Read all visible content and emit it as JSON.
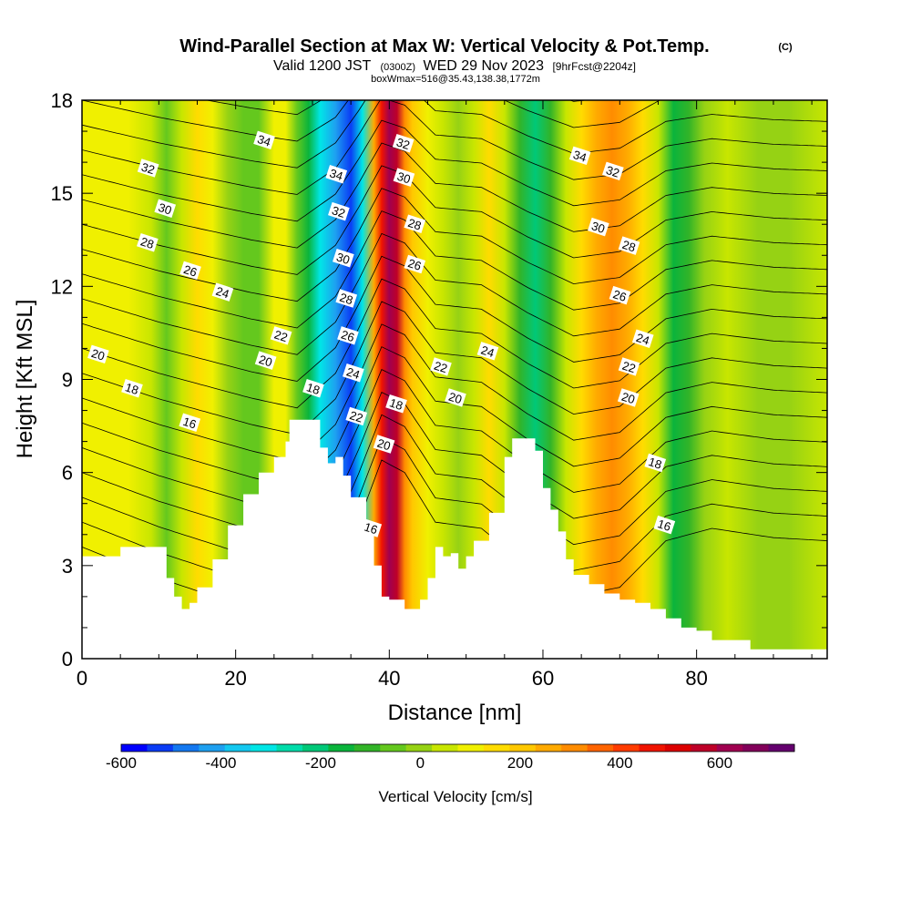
{
  "figure": {
    "title": "Wind-Parallel Section at Max W: Vertical Velocity & Pot.Temp.",
    "title_mark": "(C)",
    "subtitle_main": "Valid 1200 JST",
    "subtitle_z": "(0300Z)",
    "subtitle_date": "WED 29 Nov 2023",
    "subtitle_fcst": "[9hrFcst@2204z]",
    "box_info": "boxWmax=516@35.43,138.38,1772m"
  },
  "chart_data": {
    "type": "heatmap",
    "title": "Wind-Parallel Section at Max W: Vertical Velocity & Pot.Temp.",
    "xlabel": "Distance [nm]",
    "ylabel": "Height [Kft MSL]",
    "xlim": [
      0,
      97
    ],
    "ylim": [
      0,
      18
    ],
    "x_ticks": [
      0,
      20,
      40,
      60,
      80
    ],
    "y_ticks": [
      0,
      3,
      6,
      9,
      12,
      15,
      18
    ],
    "colorbar": {
      "label": "Vertical Velocity [cm/s]",
      "ticks": [
        -600,
        -400,
        -200,
        0,
        200,
        400,
        600
      ],
      "range": [
        -600,
        750
      ],
      "colors": [
        "#0000ff",
        "#0a3cf5",
        "#1478f0",
        "#1ea0f0",
        "#14c8f0",
        "#00e6e6",
        "#00dcaa",
        "#00c878",
        "#0ab43c",
        "#32b428",
        "#64c81e",
        "#96d214",
        "#c8e600",
        "#f0f000",
        "#ffdc00",
        "#ffc800",
        "#ffaa00",
        "#ff8c00",
        "#ff6400",
        "#ff3c00",
        "#f01400",
        "#dc0000",
        "#be0028",
        "#a00050",
        "#82005a",
        "#64006e"
      ]
    },
    "velocity_columns": [
      {
        "x": 0,
        "w": 110
      },
      {
        "x": 3,
        "w": 120
      },
      {
        "x": 6,
        "w": 90
      },
      {
        "x": 9,
        "w": 30
      },
      {
        "x": 11,
        "w": -60
      },
      {
        "x": 13,
        "w": 70
      },
      {
        "x": 15,
        "w": 150
      },
      {
        "x": 17,
        "w": 120
      },
      {
        "x": 19,
        "w": 0
      },
      {
        "x": 21,
        "w": -80
      },
      {
        "x": 23,
        "w": -30
      },
      {
        "x": 25,
        "w": 100
      },
      {
        "x": 26.5,
        "w": 110
      },
      {
        "x": 28,
        "w": -50
      },
      {
        "x": 29.5,
        "w": -170
      },
      {
        "x": 31,
        "w": -310
      },
      {
        "x": 33,
        "w": -420
      },
      {
        "x": 35,
        "w": -520
      },
      {
        "x": 36.5,
        "w": -300
      },
      {
        "x": 38,
        "w": 250
      },
      {
        "x": 39,
        "w": 480
      },
      {
        "x": 40,
        "w": 600
      },
      {
        "x": 41,
        "w": 560
      },
      {
        "x": 42,
        "w": 320
      },
      {
        "x": 43,
        "w": 180
      },
      {
        "x": 45,
        "w": 120
      },
      {
        "x": 47,
        "w": 70
      },
      {
        "x": 49,
        "w": 10
      },
      {
        "x": 51,
        "w": 70
      },
      {
        "x": 53,
        "w": 130
      },
      {
        "x": 55,
        "w": 60
      },
      {
        "x": 57,
        "w": -120
      },
      {
        "x": 59,
        "w": -210
      },
      {
        "x": 61,
        "w": -90
      },
      {
        "x": 63,
        "w": 60
      },
      {
        "x": 65,
        "w": 160
      },
      {
        "x": 67,
        "w": 250
      },
      {
        "x": 69,
        "w": 300
      },
      {
        "x": 71,
        "w": 260
      },
      {
        "x": 73,
        "w": 160
      },
      {
        "x": 75,
        "w": 30
      },
      {
        "x": 77,
        "w": -150
      },
      {
        "x": 79,
        "w": -90
      },
      {
        "x": 81,
        "w": 0
      },
      {
        "x": 84,
        "w": 50
      },
      {
        "x": 88,
        "w": 10
      },
      {
        "x": 92,
        "w": -10
      },
      {
        "x": 97,
        "w": 30
      }
    ],
    "terrain": [
      {
        "x": 0,
        "h": 3.3
      },
      {
        "x": 4,
        "h": 3.3
      },
      {
        "x": 5,
        "h": 3.6
      },
      {
        "x": 10,
        "h": 3.6
      },
      {
        "x": 11,
        "h": 2.6
      },
      {
        "x": 12,
        "h": 2.0
      },
      {
        "x": 13,
        "h": 1.6
      },
      {
        "x": 14,
        "h": 1.8
      },
      {
        "x": 15,
        "h": 2.3
      },
      {
        "x": 17,
        "h": 3.2
      },
      {
        "x": 19,
        "h": 4.3
      },
      {
        "x": 21,
        "h": 5.3
      },
      {
        "x": 23,
        "h": 6.0
      },
      {
        "x": 25,
        "h": 6.5
      },
      {
        "x": 26.5,
        "h": 7.0
      },
      {
        "x": 27,
        "h": 7.7
      },
      {
        "x": 30,
        "h": 7.7
      },
      {
        "x": 31,
        "h": 6.8
      },
      {
        "x": 32,
        "h": 6.3
      },
      {
        "x": 33,
        "h": 6.5
      },
      {
        "x": 34,
        "h": 5.9
      },
      {
        "x": 35,
        "h": 5.2
      },
      {
        "x": 37,
        "h": 4.3
      },
      {
        "x": 38,
        "h": 3.0
      },
      {
        "x": 39,
        "h": 2.0
      },
      {
        "x": 40,
        "h": 1.9
      },
      {
        "x": 42,
        "h": 1.6
      },
      {
        "x": 44,
        "h": 1.9
      },
      {
        "x": 45,
        "h": 2.6
      },
      {
        "x": 46,
        "h": 3.6
      },
      {
        "x": 47,
        "h": 3.3
      },
      {
        "x": 48,
        "h": 3.4
      },
      {
        "x": 49,
        "h": 2.9
      },
      {
        "x": 50,
        "h": 3.3
      },
      {
        "x": 51,
        "h": 3.8
      },
      {
        "x": 53,
        "h": 4.7
      },
      {
        "x": 55,
        "h": 6.5
      },
      {
        "x": 56,
        "h": 7.1
      },
      {
        "x": 58,
        "h": 7.1
      },
      {
        "x": 59,
        "h": 6.7
      },
      {
        "x": 60,
        "h": 5.5
      },
      {
        "x": 61,
        "h": 4.8
      },
      {
        "x": 62,
        "h": 4.1
      },
      {
        "x": 63,
        "h": 3.2
      },
      {
        "x": 64,
        "h": 2.7
      },
      {
        "x": 66,
        "h": 2.4
      },
      {
        "x": 68,
        "h": 2.1
      },
      {
        "x": 70,
        "h": 1.9
      },
      {
        "x": 72,
        "h": 1.8
      },
      {
        "x": 74,
        "h": 1.6
      },
      {
        "x": 76,
        "h": 1.3
      },
      {
        "x": 78,
        "h": 1.0
      },
      {
        "x": 80,
        "h": 0.9
      },
      {
        "x": 82,
        "h": 0.6
      },
      {
        "x": 86,
        "h": 0.6
      },
      {
        "x": 87,
        "h": 0.3
      },
      {
        "x": 97,
        "h": 0.3
      }
    ],
    "theta_contours": {
      "base_heights_kft": [
        3.6,
        4.4,
        5.2,
        6.0,
        6.8,
        7.6,
        8.4,
        9.2,
        10.0,
        10.8,
        11.6,
        12.4,
        13.2,
        14.0,
        14.8,
        15.6,
        16.4,
        17.2,
        18.0,
        18.8
      ],
      "wave_profile": [
        {
          "x": 0,
          "dy": 0.0
        },
        {
          "x": 10,
          "dy": -1.0
        },
        {
          "x": 22,
          "dy": -2.0
        },
        {
          "x": 28,
          "dy": -2.4
        },
        {
          "x": 33,
          "dy": -1.0
        },
        {
          "x": 36,
          "dy": 0.8
        },
        {
          "x": 39,
          "dy": 2.8
        },
        {
          "x": 42,
          "dy": 2.4
        },
        {
          "x": 46,
          "dy": 0.8
        },
        {
          "x": 52,
          "dy": 0.6
        },
        {
          "x": 58,
          "dy": -0.6
        },
        {
          "x": 64,
          "dy": -1.6
        },
        {
          "x": 70,
          "dy": -1.3
        },
        {
          "x": 76,
          "dy": 0.2
        },
        {
          "x": 82,
          "dy": 0.6
        },
        {
          "x": 90,
          "dy": 0.3
        },
        {
          "x": 97,
          "dy": 0.2
        }
      ]
    },
    "contour_labels": [
      {
        "text": "34",
        "x": 23.7,
        "y": 16.7
      },
      {
        "text": "32",
        "x": 8.6,
        "y": 15.8
      },
      {
        "text": "30",
        "x": 10.8,
        "y": 14.5
      },
      {
        "text": "28",
        "x": 8.5,
        "y": 13.4
      },
      {
        "text": "26",
        "x": 14.1,
        "y": 12.5
      },
      {
        "text": "24",
        "x": 18.3,
        "y": 11.8
      },
      {
        "text": "22",
        "x": 25.9,
        "y": 10.4
      },
      {
        "text": "20",
        "x": 2.1,
        "y": 9.8
      },
      {
        "text": "20",
        "x": 23.9,
        "y": 9.6
      },
      {
        "text": "18",
        "x": 6.5,
        "y": 8.7
      },
      {
        "text": "16",
        "x": 14.0,
        "y": 7.6
      },
      {
        "text": "18",
        "x": 30.1,
        "y": 8.7
      },
      {
        "text": "34",
        "x": 33.1,
        "y": 15.6
      },
      {
        "text": "32",
        "x": 33.4,
        "y": 14.4
      },
      {
        "text": "30",
        "x": 34.0,
        "y": 12.9
      },
      {
        "text": "28",
        "x": 34.4,
        "y": 11.6
      },
      {
        "text": "26",
        "x": 34.6,
        "y": 10.4
      },
      {
        "text": "24",
        "x": 35.3,
        "y": 9.2
      },
      {
        "text": "22",
        "x": 35.7,
        "y": 7.8
      },
      {
        "text": "16",
        "x": 37.6,
        "y": 4.2
      },
      {
        "text": "32",
        "x": 41.8,
        "y": 16.6
      },
      {
        "text": "30",
        "x": 41.9,
        "y": 15.5
      },
      {
        "text": "28",
        "x": 43.3,
        "y": 14.0
      },
      {
        "text": "26",
        "x": 43.3,
        "y": 12.7
      },
      {
        "text": "18",
        "x": 40.9,
        "y": 8.2
      },
      {
        "text": "20",
        "x": 39.3,
        "y": 6.9
      },
      {
        "text": "22",
        "x": 46.7,
        "y": 9.4
      },
      {
        "text": "20",
        "x": 48.6,
        "y": 8.4
      },
      {
        "text": "24",
        "x": 52.8,
        "y": 9.9
      },
      {
        "text": "34",
        "x": 64.8,
        "y": 16.2
      },
      {
        "text": "32",
        "x": 69.1,
        "y": 15.7
      },
      {
        "text": "30",
        "x": 67.2,
        "y": 13.9
      },
      {
        "text": "28",
        "x": 71.2,
        "y": 13.3
      },
      {
        "text": "26",
        "x": 70.0,
        "y": 11.7
      },
      {
        "text": "24",
        "x": 73.0,
        "y": 10.3
      },
      {
        "text": "22",
        "x": 71.2,
        "y": 9.4
      },
      {
        "text": "20",
        "x": 71.1,
        "y": 8.4
      },
      {
        "text": "18",
        "x": 74.6,
        "y": 6.3
      },
      {
        "text": "16",
        "x": 75.8,
        "y": 4.3
      }
    ]
  }
}
